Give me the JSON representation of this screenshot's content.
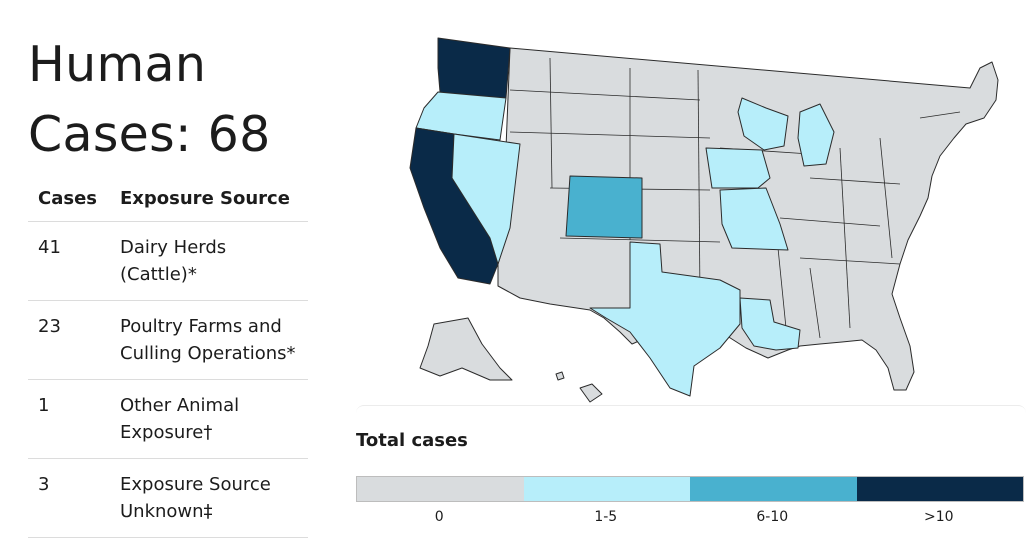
{
  "header": {
    "title_prefix": "Human",
    "title_line2": "Cases: 68"
  },
  "table": {
    "col_cases": "Cases",
    "col_source": "Exposure Source",
    "rows": [
      {
        "cases": "41",
        "source": "Dairy Herds (Cattle)*"
      },
      {
        "cases": "23",
        "source": "Poultry Farms and Culling Operations*"
      },
      {
        "cases": "1",
        "source": "Other Animal Exposure†"
      },
      {
        "cases": "3",
        "source": "Exposure Source Unknown‡"
      }
    ]
  },
  "legend": {
    "title": "Total cases",
    "bins": [
      {
        "label": "0",
        "color": "#d9dcde"
      },
      {
        "label": "1-5",
        "color": "#b7eefa"
      },
      {
        "label": "6-10",
        "color": "#49b1cf"
      },
      {
        "label": ">10",
        "color": "#0a2a48"
      }
    ]
  },
  "map": {
    "highlighted_states": [
      {
        "state": "WA",
        "bin": ">10"
      },
      {
        "state": "CA",
        "bin": ">10"
      },
      {
        "state": "CO",
        "bin": "6-10"
      },
      {
        "state": "OR",
        "bin": "1-5"
      },
      {
        "state": "NV",
        "bin": "1-5"
      },
      {
        "state": "TX",
        "bin": "1-5"
      },
      {
        "state": "LA",
        "bin": "1-5"
      },
      {
        "state": "IA",
        "bin": "1-5"
      },
      {
        "state": "MO",
        "bin": "1-5"
      },
      {
        "state": "WI",
        "bin": "1-5"
      },
      {
        "state": "MI",
        "bin": "1-5"
      }
    ]
  }
}
